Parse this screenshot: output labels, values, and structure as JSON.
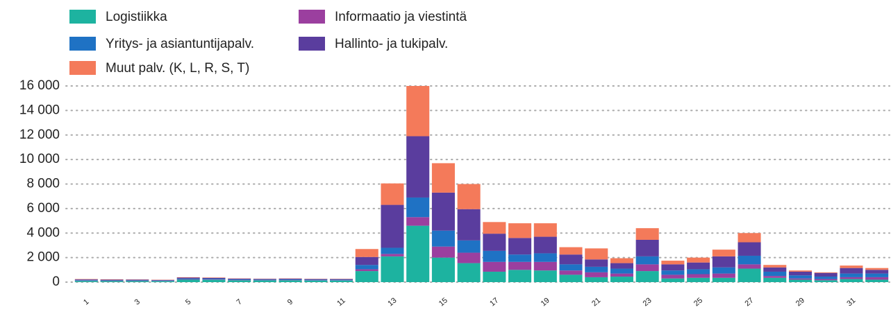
{
  "chart_data": {
    "type": "stacked-bar",
    "categories": [
      "1",
      null,
      "3",
      null,
      "5",
      null,
      "7",
      null,
      "9",
      null,
      "11",
      null,
      "13",
      null,
      "15",
      null,
      "17",
      null,
      "19",
      null,
      "21",
      null,
      "23",
      null,
      "25",
      null,
      "27",
      null,
      "29",
      null,
      "31",
      null
    ],
    "series": [
      {
        "name": "Logistiikka",
        "color": "#1db3a0",
        "values": [
          100,
          90,
          90,
          80,
          200,
          190,
          150,
          140,
          150,
          130,
          130,
          900,
          2100,
          4600,
          2000,
          1550,
          850,
          1000,
          950,
          600,
          400,
          450,
          900,
          300,
          350,
          350,
          1100,
          350,
          200,
          150,
          250,
          200
        ]
      },
      {
        "name": "Informaatio ja viestintä",
        "color": "#9b3f9f",
        "values": [
          20,
          20,
          20,
          20,
          30,
          30,
          20,
          20,
          20,
          20,
          20,
          150,
          200,
          700,
          900,
          850,
          800,
          650,
          700,
          350,
          400,
          250,
          550,
          300,
          300,
          350,
          350,
          150,
          100,
          100,
          150,
          200
        ]
      },
      {
        "name": "Yritys- ja asiantuntijapalv.",
        "color": "#1f72c4",
        "values": [
          40,
          40,
          40,
          30,
          60,
          60,
          50,
          50,
          50,
          50,
          50,
          350,
          500,
          1600,
          1300,
          1000,
          900,
          600,
          700,
          500,
          450,
          400,
          650,
          350,
          400,
          500,
          700,
          350,
          250,
          200,
          300,
          300
        ]
      },
      {
        "name": "Hallinto- ja tukipalv.",
        "color": "#5a3d9e",
        "values": [
          60,
          50,
          50,
          50,
          80,
          70,
          60,
          50,
          60,
          50,
          50,
          650,
          3500,
          5000,
          3100,
          2550,
          1400,
          1350,
          1350,
          800,
          600,
          450,
          1350,
          500,
          550,
          900,
          1100,
          350,
          300,
          300,
          450,
          300
        ]
      },
      {
        "name": "Muut palv. (K, L, R, S, T)",
        "color": "#f47a5a",
        "values": [
          30,
          30,
          20,
          20,
          30,
          30,
          20,
          20,
          20,
          20,
          20,
          650,
          1750,
          4100,
          2400,
          2050,
          950,
          1200,
          1100,
          600,
          900,
          400,
          950,
          300,
          400,
          550,
          750,
          200,
          100,
          50,
          200,
          150
        ]
      }
    ],
    "ylim": [
      -600,
      16600
    ],
    "yticks": [
      0,
      {
        "value": 2000,
        "label": "2 000"
      },
      {
        "value": 4000,
        "label": "4 000"
      },
      {
        "value": 6000,
        "label": "6 000"
      },
      {
        "value": 8000,
        "label": "8 000"
      },
      {
        "value": 10000,
        "label": "10 000"
      },
      {
        "value": 12000,
        "label": "12 000"
      },
      {
        "value": 14000,
        "label": "14 000"
      },
      {
        "value": 16000,
        "label": "16 000"
      }
    ],
    "grid": true
  }
}
